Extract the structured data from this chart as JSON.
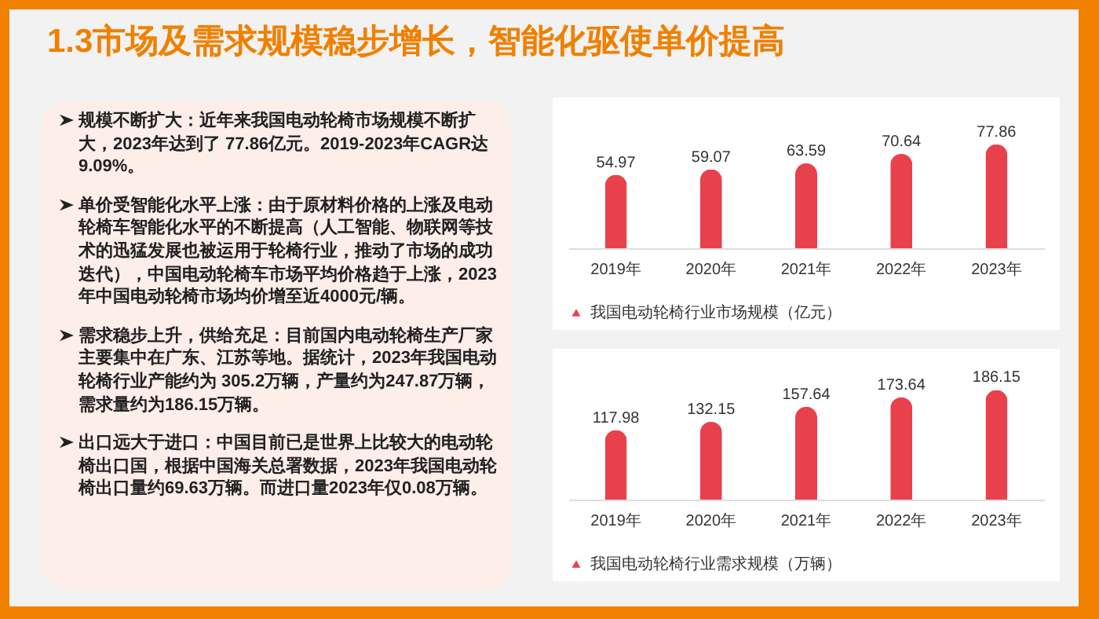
{
  "chart_data": [
    {
      "type": "other",
      "title": "1.3市场及需求规模稳步增长，智能化驱使单价提高",
      "annotations": [
        "规模不断扩大：近年来我国电动轮椅市场规模不断扩大，2023年达到了 77.86亿元。2019-2023年CAGR达9.09%。",
        "单价受智能化水平上涨：由于原材料价格的上涨及电动轮椅车智能化水平的不断提高（人工智能、物联网等技术的迅猛发展也被运用于轮椅行业，推动了市场的成功迭代），中国电动轮椅车市场平均价格趋于上涨，2023年中国电动轮椅市场均价增至近4000元/辆。",
        "需求稳步上升，供给充足：目前国内电动轮椅生产厂家主要集中在广东、江苏等地。据统计，2023年我国电动轮椅行业产能约为 305.2万辆，产量约为247.87万辆，需求量约为186.15万辆。",
        "出口远大于进口：中国目前已是世界上比较大的电动轮椅出口国，根据中国海关总署数据，2023年我国电动轮椅出口量约69.63万辆。而进口量2023年仅0.08万辆。"
      ]
    },
    {
      "type": "bar",
      "categories": [
        "2019年",
        "2020年",
        "2021年",
        "2022年",
        "2023年"
      ],
      "legend": "bottom",
      "data_labels": true,
      "series": [
        {
          "name": "我国电动轮椅行业市场规模（亿元）",
          "color": "#e8414c",
          "values": [
            54.97,
            59.07,
            63.59,
            70.64,
            77.86
          ]
        }
      ]
    },
    {
      "type": "bar",
      "categories": [
        "2019年",
        "2020年",
        "2021年",
        "2022年",
        "2023年"
      ],
      "legend": "bottom",
      "data_labels": true,
      "series": [
        {
          "name": "我国电动轮椅行业需求规模（万辆）",
          "color": "#e8414c",
          "values": [
            117.98,
            132.15,
            157.64,
            173.64,
            186.15
          ]
        }
      ]
    }
  ]
}
